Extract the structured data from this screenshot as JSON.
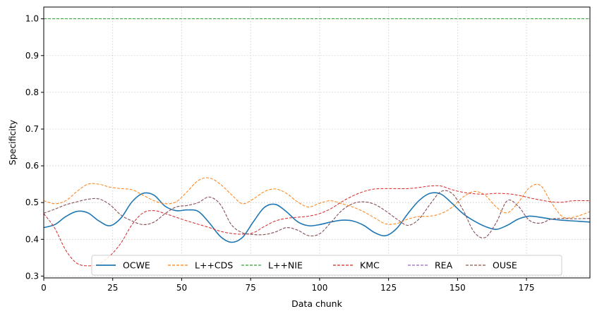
{
  "chart_data": {
    "type": "line",
    "xlabel": "Data chunk",
    "ylabel": "Specificity",
    "xlim": [
      0,
      198
    ],
    "ylim": [
      0.295,
      1.032
    ],
    "xticks": [
      0,
      25,
      50,
      75,
      100,
      125,
      150,
      175
    ],
    "xtick_labels": [
      "0",
      "25",
      "50",
      "75",
      "100",
      "125",
      "150",
      "175"
    ],
    "yticks": [
      0.3,
      0.4,
      0.5,
      0.6,
      0.7,
      0.8,
      0.9,
      1.0
    ],
    "ytick_labels": [
      "0.3",
      "0.4",
      "0.5",
      "0.6",
      "0.7",
      "0.8",
      "0.9",
      "1.0"
    ],
    "grid": true,
    "legend_position": "lower-center",
    "series": [
      {
        "name": "OCWE",
        "color": "#1f77b4",
        "style": "solid",
        "x": [
          0,
          4,
          8,
          12,
          16,
          20,
          24,
          28,
          32,
          36,
          40,
          44,
          48,
          52,
          56,
          60,
          64,
          68,
          72,
          76,
          80,
          84,
          88,
          92,
          96,
          100,
          104,
          108,
          112,
          116,
          120,
          124,
          128,
          132,
          136,
          140,
          144,
          148,
          152,
          156,
          160,
          164,
          168,
          172,
          176,
          180,
          184,
          188,
          192,
          198
        ],
        "y": [
          0.432,
          0.44,
          0.462,
          0.476,
          0.472,
          0.45,
          0.437,
          0.458,
          0.502,
          0.525,
          0.52,
          0.49,
          0.478,
          0.48,
          0.476,
          0.445,
          0.408,
          0.392,
          0.405,
          0.448,
          0.487,
          0.495,
          0.475,
          0.448,
          0.437,
          0.44,
          0.447,
          0.452,
          0.45,
          0.438,
          0.418,
          0.41,
          0.43,
          0.47,
          0.505,
          0.525,
          0.523,
          0.498,
          0.47,
          0.45,
          0.435,
          0.427,
          0.438,
          0.455,
          0.463,
          0.46,
          0.455,
          0.452,
          0.45,
          0.447
        ]
      },
      {
        "name": "L++CDS",
        "color": "#ff7f0e",
        "style": "dashed",
        "x": [
          0,
          4,
          8,
          12,
          16,
          20,
          24,
          28,
          32,
          36,
          40,
          44,
          48,
          52,
          56,
          60,
          64,
          68,
          72,
          76,
          80,
          84,
          88,
          92,
          96,
          100,
          104,
          108,
          112,
          116,
          120,
          124,
          128,
          132,
          136,
          140,
          144,
          148,
          152,
          156,
          160,
          164,
          168,
          172,
          176,
          180,
          184,
          188,
          192,
          198
        ],
        "y": [
          0.505,
          0.497,
          0.505,
          0.53,
          0.55,
          0.55,
          0.542,
          0.538,
          0.535,
          0.52,
          0.505,
          0.497,
          0.502,
          0.53,
          0.56,
          0.567,
          0.55,
          0.522,
          0.497,
          0.51,
          0.53,
          0.537,
          0.525,
          0.502,
          0.488,
          0.498,
          0.505,
          0.497,
          0.488,
          0.475,
          0.458,
          0.442,
          0.443,
          0.455,
          0.462,
          0.463,
          0.47,
          0.487,
          0.515,
          0.53,
          0.52,
          0.488,
          0.472,
          0.5,
          0.54,
          0.547,
          0.5,
          0.462,
          0.46,
          0.475
        ]
      },
      {
        "name": "L++NIE",
        "color": "#2ca02c",
        "style": "dashed",
        "x": [
          0,
          198
        ],
        "y": [
          1.0,
          1.0
        ]
      },
      {
        "name": "KMC",
        "color": "#d62728",
        "style": "dashed",
        "x": [
          0,
          4,
          8,
          12,
          16,
          20,
          24,
          28,
          32,
          36,
          40,
          44,
          48,
          52,
          56,
          60,
          64,
          68,
          72,
          76,
          80,
          84,
          88,
          92,
          96,
          100,
          104,
          108,
          112,
          116,
          120,
          124,
          128,
          132,
          136,
          140,
          144,
          148,
          152,
          156,
          160,
          164,
          168,
          172,
          176,
          180,
          184,
          188,
          192,
          198
        ],
        "y": [
          0.47,
          0.43,
          0.37,
          0.335,
          0.328,
          0.333,
          0.355,
          0.39,
          0.44,
          0.472,
          0.478,
          0.47,
          0.46,
          0.45,
          0.441,
          0.432,
          0.422,
          0.416,
          0.414,
          0.418,
          0.435,
          0.45,
          0.457,
          0.46,
          0.463,
          0.47,
          0.483,
          0.502,
          0.518,
          0.53,
          0.537,
          0.538,
          0.538,
          0.538,
          0.541,
          0.545,
          0.545,
          0.535,
          0.528,
          0.524,
          0.523,
          0.525,
          0.524,
          0.52,
          0.513,
          0.507,
          0.502,
          0.501,
          0.505,
          0.505
        ]
      },
      {
        "name": "REA",
        "color": "#9467bd",
        "style": "dashed",
        "x": [
          0,
          4,
          8,
          12,
          16,
          20,
          24,
          28,
          32,
          36,
          40,
          44,
          48,
          52,
          56,
          60,
          64,
          68,
          72,
          76,
          80,
          84,
          88,
          92,
          96,
          100,
          104,
          108,
          112,
          116,
          120,
          124,
          128,
          132,
          136,
          140,
          144,
          148,
          152,
          156,
          160,
          164,
          168,
          172,
          176,
          180,
          184,
          188,
          192,
          198
        ],
        "y": [
          0.471,
          0.482,
          0.494,
          0.502,
          0.509,
          0.51,
          0.494,
          0.466,
          0.45,
          0.44,
          0.447,
          0.47,
          0.488,
          0.492,
          0.5,
          0.515,
          0.495,
          0.44,
          0.418,
          0.413,
          0.413,
          0.42,
          0.432,
          0.425,
          0.41,
          0.415,
          0.445,
          0.478,
          0.497,
          0.502,
          0.495,
          0.477,
          0.455,
          0.438,
          0.455,
          0.495,
          0.53,
          0.525,
          0.48,
          0.42,
          0.405,
          0.445,
          0.505,
          0.49,
          0.452,
          0.444,
          0.455,
          0.457,
          0.456,
          0.457
        ]
      },
      {
        "name": "OUSE",
        "color": "#8c564b",
        "style": "dashed",
        "x": [
          0,
          4,
          8,
          12,
          16,
          20,
          24,
          28,
          32,
          36,
          40,
          44,
          48,
          52,
          56,
          60,
          64,
          68,
          72,
          76,
          80,
          84,
          88,
          92,
          96,
          100,
          104,
          108,
          112,
          116,
          120,
          124,
          128,
          132,
          136,
          140,
          144,
          148,
          152,
          156,
          160,
          164,
          168,
          172,
          176,
          180,
          184,
          188,
          192,
          198
        ],
        "y": [
          0.471,
          0.482,
          0.494,
          0.502,
          0.509,
          0.51,
          0.494,
          0.466,
          0.45,
          0.44,
          0.447,
          0.47,
          0.488,
          0.492,
          0.5,
          0.515,
          0.495,
          0.44,
          0.418,
          0.413,
          0.413,
          0.42,
          0.432,
          0.425,
          0.41,
          0.415,
          0.445,
          0.478,
          0.497,
          0.502,
          0.495,
          0.477,
          0.455,
          0.438,
          0.455,
          0.495,
          0.53,
          0.525,
          0.48,
          0.42,
          0.405,
          0.445,
          0.505,
          0.49,
          0.452,
          0.444,
          0.455,
          0.457,
          0.456,
          0.457
        ]
      }
    ]
  }
}
